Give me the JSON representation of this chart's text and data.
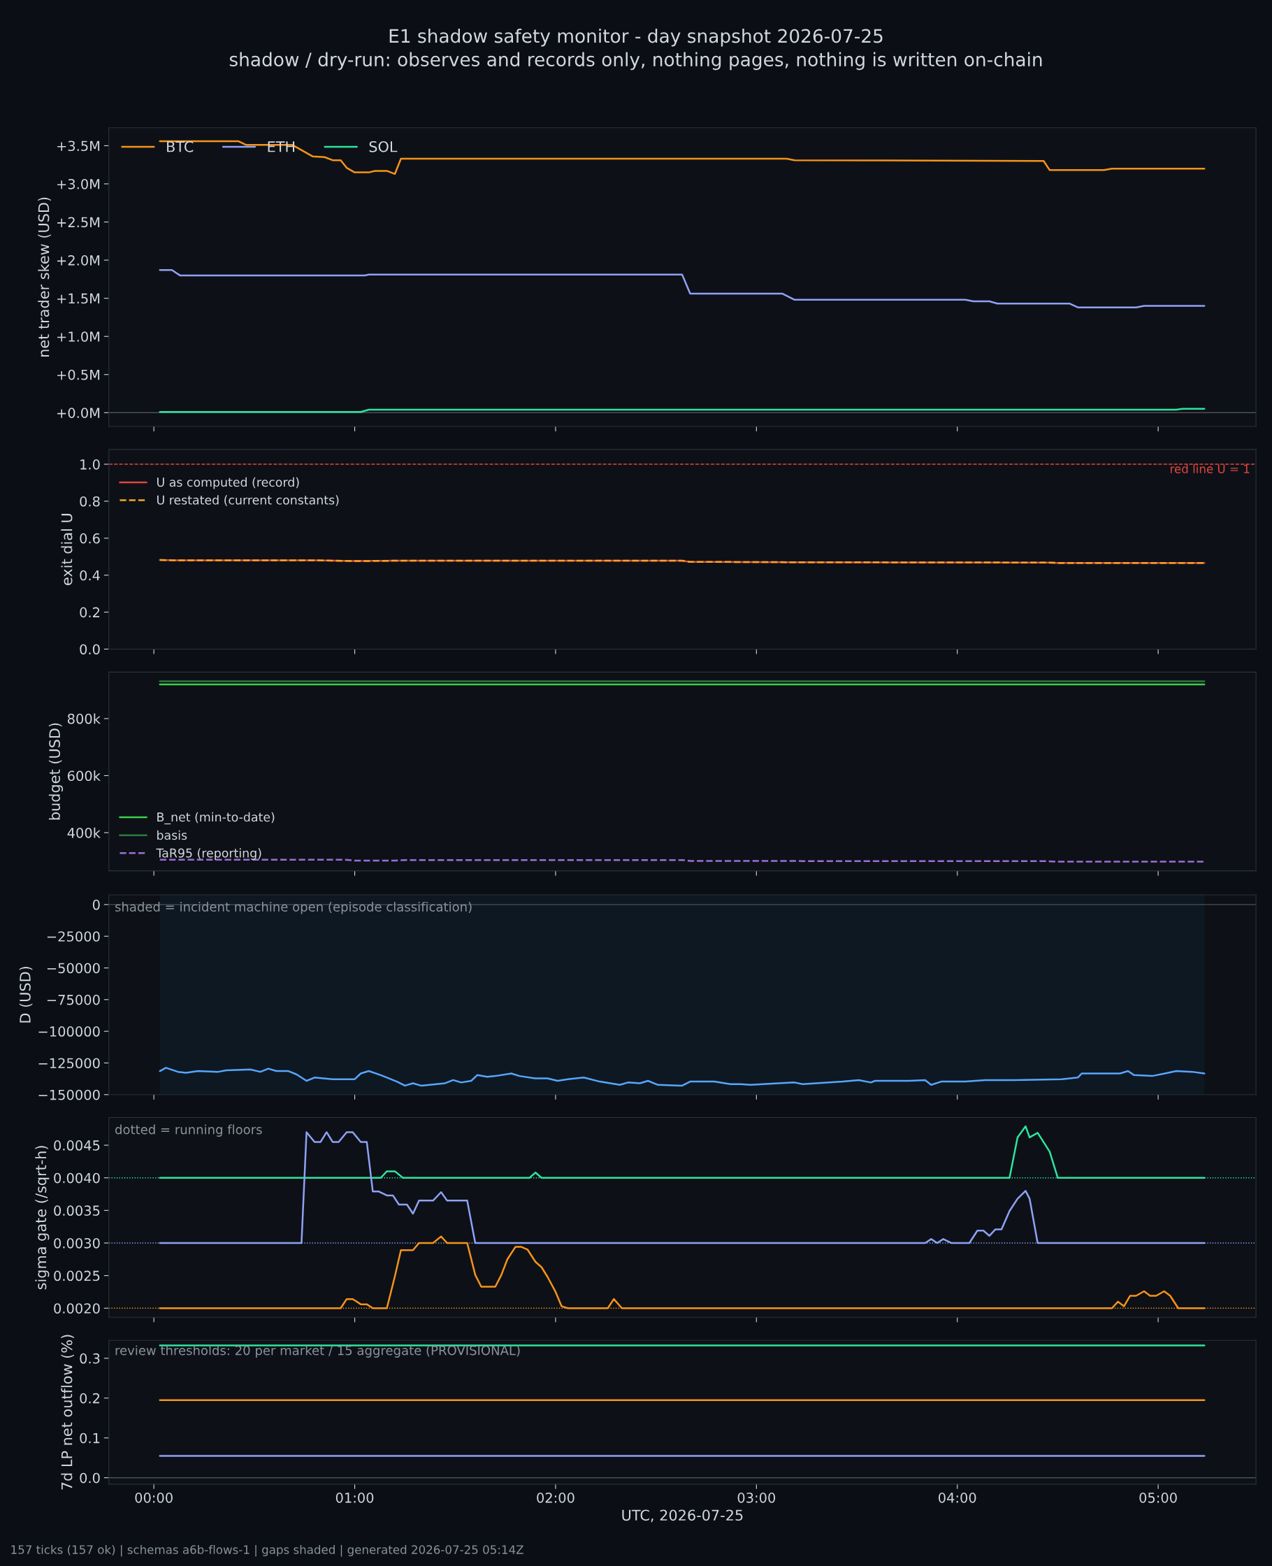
{
  "chart_data": [
    {
      "type": "line",
      "title": "E1 shadow safety monitor - day snapshot 2026-07-25",
      "subtitle": "shadow / dry-run: observes and records only, nothing pages, nothing is written on-chain",
      "ylabel": "net trader skew (USD)",
      "series": [
        {
          "name": "BTC",
          "color": "#f7931a",
          "x": [
            0.03,
            0.42,
            0.46,
            0.69,
            0.73,
            0.79,
            0.85,
            0.89,
            0.93,
            0.96,
            1.0,
            1.07,
            1.1,
            1.16,
            1.2,
            1.23,
            3.15,
            3.19,
            4.43,
            4.46,
            4.73,
            4.77,
            5.23
          ],
          "values": [
            3560000,
            3560000,
            3510000,
            3510000,
            3450000,
            3360000,
            3350000,
            3310000,
            3310000,
            3210000,
            3150000,
            3150000,
            3170000,
            3170000,
            3130000,
            3330000,
            3330000,
            3310000,
            3300000,
            3180000,
            3180000,
            3200000,
            3200000
          ]
        },
        {
          "name": "ETH",
          "color": "#8fa2f5",
          "x": [
            0.03,
            0.09,
            0.13,
            1.05,
            1.07,
            2.63,
            2.67,
            3.13,
            3.19,
            4.04,
            4.08,
            4.16,
            4.2,
            4.56,
            4.6,
            4.89,
            4.93,
            5.23
          ],
          "values": [
            1870000,
            1870000,
            1800000,
            1800000,
            1810000,
            1810000,
            1560000,
            1560000,
            1480000,
            1480000,
            1460000,
            1460000,
            1430000,
            1430000,
            1380000,
            1380000,
            1400000,
            1400000
          ]
        },
        {
          "name": "SOL",
          "color": "#2ee59d",
          "x": [
            0.03,
            1.03,
            1.07,
            5.09,
            5.12,
            5.23
          ],
          "values": [
            10000,
            10000,
            40000,
            40000,
            50000,
            50000
          ]
        }
      ],
      "xlim": [
        -0.224,
        5.487
      ],
      "xticks": [
        {
          "value": 0,
          "label": null
        },
        {
          "value": 1,
          "label": null
        },
        {
          "value": 2,
          "label": null
        },
        {
          "value": 3,
          "label": null
        },
        {
          "value": 4,
          "label": null
        },
        {
          "value": 5,
          "label": null
        }
      ],
      "ylim": [
        -180000,
        3735000
      ],
      "yticks": [
        {
          "value": 0,
          "label": "+0.0M"
        },
        {
          "value": 500000,
          "label": "+0.5M"
        },
        {
          "value": 1000000,
          "label": "+1.0M"
        },
        {
          "value": 1500000,
          "label": "+1.5M"
        },
        {
          "value": 2000000,
          "label": "+2.0M"
        },
        {
          "value": 2500000,
          "label": "+2.5M"
        },
        {
          "value": 3000000,
          "label": "+3.0M"
        },
        {
          "value": 3500000,
          "label": "+3.5M"
        }
      ],
      "ref_lines": [
        {
          "axis": "y",
          "value": 0,
          "color": "#4a5058"
        }
      ],
      "legend": "top left",
      "tick_labels": "y",
      "grid": false
    },
    {
      "type": "line",
      "ylabel": "exit dial U",
      "series": [
        {
          "name": "U as computed (record)",
          "color": "#e0463f",
          "x": [
            0.03,
            0.1,
            0.8,
            1.0,
            1.2,
            2.63,
            2.67,
            3.19,
            4.45,
            4.5,
            5.23
          ],
          "values": [
            0.482,
            0.48,
            0.48,
            0.476,
            0.478,
            0.478,
            0.472,
            0.47,
            0.468,
            0.466,
            0.466
          ]
        },
        {
          "name": "U restated (current constants)",
          "color": "#f5a623",
          "line_style": "dashed",
          "x": [
            0.03,
            0.1,
            0.8,
            1.0,
            1.2,
            2.63,
            2.67,
            3.19,
            4.45,
            4.5,
            5.23
          ],
          "values": [
            0.482,
            0.48,
            0.48,
            0.476,
            0.478,
            0.478,
            0.472,
            0.47,
            0.468,
            0.466,
            0.466
          ]
        }
      ],
      "xlim": [
        -0.224,
        5.487
      ],
      "xticks": [
        {
          "value": 0,
          "label": null
        },
        {
          "value": 1,
          "label": null
        },
        {
          "value": 2,
          "label": null
        },
        {
          "value": 3,
          "label": null
        },
        {
          "value": 4,
          "label": null
        },
        {
          "value": 5,
          "label": null
        }
      ],
      "ylim": [
        0.0,
        1.08
      ],
      "yticks": [
        {
          "value": 0,
          "label": "0.0"
        },
        0.2,
        0.4,
        0.6,
        0.8,
        {
          "value": 1,
          "label": "1.0"
        }
      ],
      "ref_lines": [
        {
          "axis": "y",
          "value": 1.0,
          "label": "red line U = 1",
          "color": "#e0463f",
          "line_style": "dashed"
        }
      ],
      "legend": "top left",
      "tick_labels": "y",
      "grid": false
    },
    {
      "type": "line",
      "ylabel": "budget (USD)",
      "series": [
        {
          "name": "B_net (min-to-date)",
          "color": "#3fcf4a",
          "x": [
            0.03,
            5.23
          ],
          "values": [
            920000,
            920000
          ]
        },
        {
          "name": "basis",
          "color": "#2f7a3c",
          "x": [
            0.03,
            5.23
          ],
          "values": [
            931000,
            931000
          ]
        },
        {
          "name": "TaR95 (reporting)",
          "color": "#9b6fd6",
          "line_style": "dashed",
          "x": [
            0.03,
            0.95,
            1.0,
            1.2,
            1.25,
            2.63,
            2.67,
            3.19,
            3.23,
            4.45,
            4.5,
            5.23
          ],
          "values": [
            305000,
            305000,
            302000,
            302000,
            304000,
            304000,
            301000,
            301000,
            300000,
            300000,
            298000,
            298000
          ]
        }
      ],
      "xlim": [
        -0.224,
        5.487
      ],
      "xticks": [
        {
          "value": 0,
          "label": null
        },
        {
          "value": 1,
          "label": null
        },
        {
          "value": 2,
          "label": null
        },
        {
          "value": 3,
          "label": null
        },
        {
          "value": 4,
          "label": null
        },
        {
          "value": 5,
          "label": null
        }
      ],
      "ylim": [
        266000,
        963000
      ],
      "yticks": [
        {
          "value": 400000,
          "label": "400k"
        },
        {
          "value": 600000,
          "label": "600k"
        },
        {
          "value": 800000,
          "label": "800k"
        }
      ],
      "legend": "bottom left",
      "tick_labels": "y",
      "grid": false
    },
    {
      "type": "line",
      "ylabel": "D (USD)",
      "annotations": [
        "shaded = incident machine open (episode classification)"
      ],
      "series": [
        {
          "color": "#58a6ff",
          "x": [
            0.03,
            0.06,
            0.12,
            0.16,
            0.22,
            0.32,
            0.36,
            0.48,
            0.53,
            0.57,
            0.61,
            0.67,
            0.71,
            0.76,
            0.8,
            0.89,
            1.0,
            1.03,
            1.07,
            1.13,
            1.21,
            1.25,
            1.29,
            1.33,
            1.45,
            1.49,
            1.53,
            1.58,
            1.61,
            1.66,
            1.7,
            1.78,
            1.82,
            1.9,
            1.96,
            2.01,
            2.06,
            2.14,
            2.22,
            2.32,
            2.36,
            2.42,
            2.46,
            2.51,
            2.63,
            2.67,
            2.79,
            2.87,
            2.92,
            2.97,
            3.11,
            3.19,
            3.23,
            3.43,
            3.51,
            3.57,
            3.59,
            3.76,
            3.84,
            3.87,
            3.92,
            4.04,
            4.14,
            4.28,
            4.52,
            4.6,
            4.62,
            4.71,
            4.81,
            4.85,
            4.88,
            4.97,
            5.05,
            5.09,
            5.17,
            5.23
          ],
          "values": [
            -131400,
            -128800,
            -132000,
            -132700,
            -131400,
            -132000,
            -130800,
            -130100,
            -132000,
            -129500,
            -131400,
            -131400,
            -134000,
            -139100,
            -136500,
            -137800,
            -137800,
            -133300,
            -131400,
            -134600,
            -139700,
            -142900,
            -141000,
            -142900,
            -141000,
            -138500,
            -140400,
            -139100,
            -134600,
            -135900,
            -135300,
            -133300,
            -135300,
            -137200,
            -137200,
            -139100,
            -137800,
            -136500,
            -139700,
            -142300,
            -140400,
            -141000,
            -139100,
            -142300,
            -142900,
            -139700,
            -139700,
            -141700,
            -141700,
            -142300,
            -141000,
            -140400,
            -141700,
            -139700,
            -138500,
            -140400,
            -139100,
            -139100,
            -138500,
            -142300,
            -139700,
            -139700,
            -138500,
            -138500,
            -137800,
            -136500,
            -133300,
            -133300,
            -133300,
            -131400,
            -134600,
            -135300,
            -132700,
            -131400,
            -132000,
            -133300
          ]
        }
      ],
      "bands": [
        {
          "axis": "x",
          "from": 0.03,
          "to": 5.23,
          "color": "#0e1822"
        }
      ],
      "ref_lines": [
        {
          "axis": "y",
          "value": 0,
          "color": "#4a5058"
        }
      ],
      "xlim": [
        -0.224,
        5.487
      ],
      "xticks": [
        {
          "value": 0,
          "label": null
        },
        {
          "value": 1,
          "label": null
        },
        {
          "value": 2,
          "label": null
        },
        {
          "value": 3,
          "label": null
        },
        {
          "value": 4,
          "label": null
        },
        {
          "value": 5,
          "label": null
        }
      ],
      "ylim": [
        -150000,
        7700
      ],
      "yticks": [
        {
          "value": -150000,
          "label": "−150000"
        },
        {
          "value": -125000,
          "label": "−125000"
        },
        {
          "value": -100000,
          "label": "−100000"
        },
        {
          "value": -75000,
          "label": "−75000"
        },
        {
          "value": -50000,
          "label": "−50000"
        },
        {
          "value": -25000,
          "label": "−25000"
        },
        {
          "value": 0,
          "label": "0"
        }
      ],
      "tick_labels": "y",
      "grid": false
    },
    {
      "type": "line",
      "ylabel": "sigma gate (/sqrt-h)",
      "annotations": [
        "dotted = running floors"
      ],
      "series": [
        {
          "color": "#2ee59d",
          "x": [
            0.03,
            1.13,
            1.16,
            1.2,
            1.24,
            1.87,
            1.9,
            1.93,
            4.26,
            4.3,
            4.34,
            4.36,
            4.4,
            4.46,
            4.5,
            5.23
          ],
          "values": [
            0.004,
            0.004,
            0.0041,
            0.0041,
            0.004,
            0.004,
            0.00408,
            0.004,
            0.004,
            0.00462,
            0.00479,
            0.00462,
            0.00469,
            0.0044,
            0.004,
            0.004
          ]
        },
        {
          "color": "#8fa2f5",
          "x": [
            0.03,
            0.735,
            0.76,
            0.8,
            0.83,
            0.86,
            0.89,
            0.92,
            0.96,
            0.99,
            1.03,
            1.06,
            1.09,
            1.12,
            1.16,
            1.19,
            1.22,
            1.26,
            1.29,
            1.32,
            1.39,
            1.43,
            1.46,
            1.56,
            1.6,
            3.84,
            3.87,
            3.9,
            3.93,
            3.97,
            4.06,
            4.1,
            4.13,
            4.16,
            4.19,
            4.22,
            4.26,
            4.3,
            4.34,
            4.36,
            4.4,
            5.23
          ],
          "values": [
            0.003,
            0.003,
            0.0047,
            0.00455,
            0.00455,
            0.0047,
            0.00455,
            0.00455,
            0.0047,
            0.0047,
            0.00455,
            0.00455,
            0.00379,
            0.00379,
            0.00373,
            0.00373,
            0.00359,
            0.00359,
            0.00345,
            0.00365,
            0.00365,
            0.00378,
            0.00365,
            0.00365,
            0.003,
            0.003,
            0.00306,
            0.003,
            0.00306,
            0.003,
            0.003,
            0.00319,
            0.00319,
            0.00311,
            0.00321,
            0.00321,
            0.00349,
            0.00368,
            0.0038,
            0.00368,
            0.003,
            0.003
          ]
        },
        {
          "color": "#f7931a",
          "x": [
            0.03,
            0.93,
            0.96,
            0.99,
            1.03,
            1.06,
            1.09,
            1.16,
            1.2,
            1.23,
            1.29,
            1.32,
            1.39,
            1.43,
            1.46,
            1.56,
            1.6,
            1.63,
            1.7,
            1.73,
            1.76,
            1.8,
            1.83,
            1.86,
            1.9,
            1.93,
            1.96,
            2.0,
            2.03,
            2.06,
            2.26,
            2.29,
            2.33,
            4.77,
            4.8,
            4.83,
            4.86,
            4.89,
            4.93,
            4.96,
            4.99,
            5.03,
            5.06,
            5.1,
            5.23
          ],
          "values": [
            0.002,
            0.002,
            0.00214,
            0.00214,
            0.00206,
            0.00206,
            0.002,
            0.002,
            0.00249,
            0.00289,
            0.00289,
            0.003,
            0.003,
            0.0031,
            0.003,
            0.003,
            0.00251,
            0.00233,
            0.00233,
            0.00251,
            0.00275,
            0.00294,
            0.00294,
            0.0029,
            0.00271,
            0.00263,
            0.00248,
            0.00225,
            0.00203,
            0.002,
            0.002,
            0.00214,
            0.002,
            0.002,
            0.0021,
            0.00203,
            0.00219,
            0.00219,
            0.00226,
            0.00219,
            0.00219,
            0.00226,
            0.00219,
            0.002,
            0.002
          ]
        }
      ],
      "ref_lines": [
        {
          "axis": "y",
          "value": 0.004,
          "color": "#2ee59d",
          "line_style": "dotted"
        },
        {
          "axis": "y",
          "value": 0.003,
          "color": "#8fa2f5",
          "line_style": "dotted"
        },
        {
          "axis": "y",
          "value": 0.002,
          "color": "#f7931a",
          "line_style": "dotted"
        }
      ],
      "xlim": [
        -0.224,
        5.487
      ],
      "xticks": [
        {
          "value": 0,
          "label": null
        },
        {
          "value": 1,
          "label": null
        },
        {
          "value": 2,
          "label": null
        },
        {
          "value": 3,
          "label": null
        },
        {
          "value": 4,
          "label": null
        },
        {
          "value": 5,
          "label": null
        }
      ],
      "ylim": [
        0.00186,
        0.004925
      ],
      "yticks": [
        {
          "value": 0.002,
          "label": "0.0020"
        },
        {
          "value": 0.0025,
          "label": "0.0025"
        },
        {
          "value": 0.003,
          "label": "0.0030"
        },
        {
          "value": 0.0035,
          "label": "0.0035"
        },
        {
          "value": 0.004,
          "label": "0.0040"
        },
        {
          "value": 0.0045,
          "label": "0.0045"
        }
      ],
      "tick_labels": "y",
      "grid": false
    },
    {
      "type": "line",
      "xlabel": "UTC, 2026-07-25",
      "ylabel": "7d LP net outflow (%)",
      "annotations": [
        "review thresholds: 20 per market / 15 aggregate (PROVISIONAL)",
        "157 ticks (157 ok) | schemas a6b-flows-1 | gaps shaded | generated 2026-07-25 05:14Z"
      ],
      "series": [
        {
          "color": "#2ee59d",
          "x": [
            0.03,
            5.23
          ],
          "values": [
            0.332,
            0.332
          ]
        },
        {
          "color": "#f7931a",
          "x": [
            0.03,
            5.23
          ],
          "values": [
            0.195,
            0.195
          ]
        },
        {
          "color": "#8fa2f5",
          "x": [
            0.03,
            5.23
          ],
          "values": [
            0.055,
            0.055
          ]
        }
      ],
      "ref_lines": [
        {
          "axis": "y",
          "value": 0,
          "color": "#4a5058"
        }
      ],
      "xlim": [
        -0.224,
        5.487
      ],
      "xticks": [
        {
          "value": 0,
          "label": "00:00"
        },
        {
          "value": 1,
          "label": "01:00"
        },
        {
          "value": 2,
          "label": "02:00"
        },
        {
          "value": 3,
          "label": "03:00"
        },
        {
          "value": 4,
          "label": "04:00"
        },
        {
          "value": 5,
          "label": "05:00"
        }
      ],
      "ylim": [
        -0.016,
        0.345
      ],
      "yticks": [
        {
          "value": 0,
          "label": "0.0"
        },
        0.1,
        0.2,
        0.3
      ],
      "grid": false
    }
  ]
}
